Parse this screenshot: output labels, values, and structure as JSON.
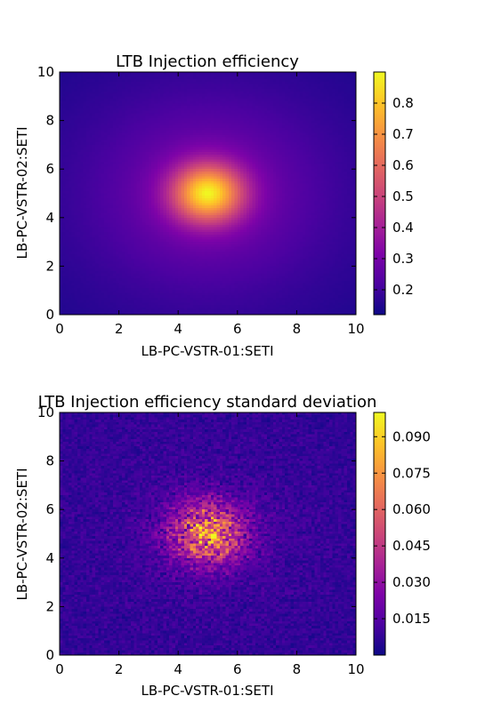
{
  "chart_data": [
    {
      "type": "heatmap",
      "title": "LTB Injection efficiency",
      "xlabel": "LB-PC-VSTR-01:SETI",
      "ylabel": "LB-PC-VSTR-02:SETI",
      "xlim": [
        0,
        10
      ],
      "ylim": [
        0,
        10
      ],
      "x_ticks": [
        "0",
        "2",
        "4",
        "6",
        "8",
        "10"
      ],
      "y_ticks": [
        "0",
        "2",
        "4",
        "6",
        "8",
        "10"
      ],
      "colormap": "plasma",
      "value_range": [
        0.12,
        0.9
      ],
      "colorbar_ticks": [
        "0.2",
        "0.3",
        "0.4",
        "0.5",
        "0.6",
        "0.7",
        "0.8"
      ],
      "peak": {
        "x": 5.0,
        "y": 5.0,
        "value": 0.9
      },
      "corner_value": 0.12,
      "noise": 0.004
    },
    {
      "type": "heatmap",
      "title": "LTB Injection efficiency standard deviation",
      "xlabel": "LB-PC-VSTR-01:SETI",
      "ylabel": "LB-PC-VSTR-02:SETI",
      "xlim": [
        0,
        10
      ],
      "ylim": [
        0,
        10
      ],
      "x_ticks": [
        "0",
        "2",
        "4",
        "6",
        "8",
        "10"
      ],
      "y_ticks": [
        "0",
        "2",
        "4",
        "6",
        "8",
        "10"
      ],
      "colormap": "plasma",
      "value_range": [
        0.0,
        0.1
      ],
      "colorbar_ticks": [
        "0.015",
        "0.030",
        "0.045",
        "0.060",
        "0.075",
        "0.090"
      ],
      "peak": {
        "x": 5.0,
        "y": 5.0,
        "value": 0.06
      },
      "corner_value": 0.006,
      "noise": 0.5
    }
  ]
}
